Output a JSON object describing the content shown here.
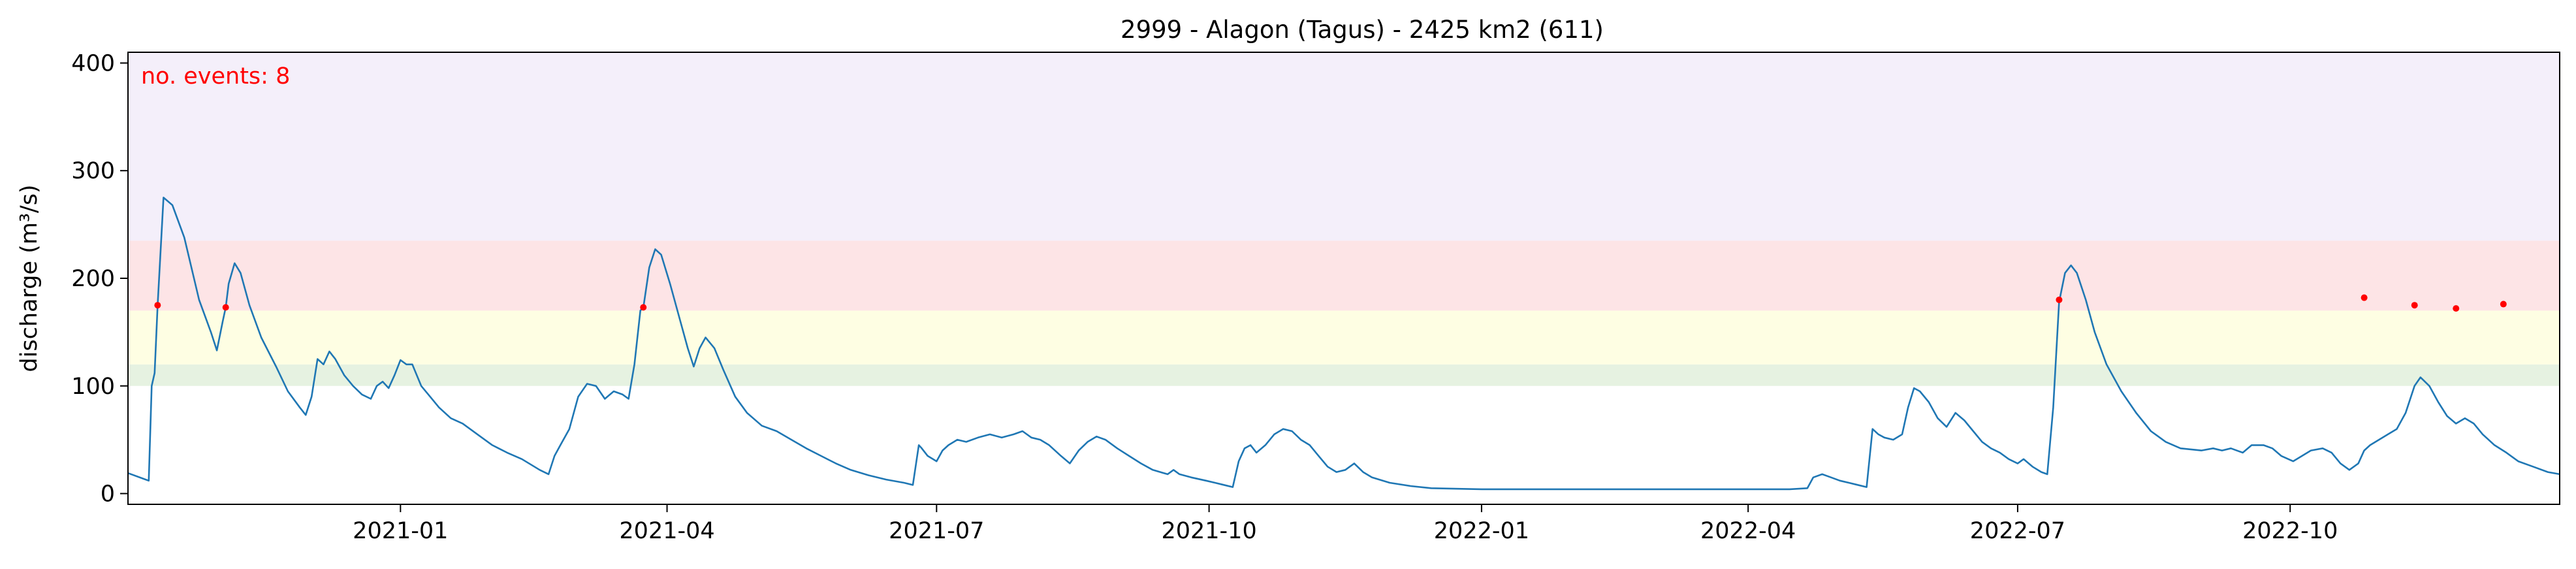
{
  "chart_data": {
    "type": "line",
    "title": "2999 - Alagon (Tagus) - 2425 km2 (611)",
    "xlabel": "",
    "ylabel": "discharge (m³/s)",
    "xlim": [
      "2020-10-01",
      "2022-12-31"
    ],
    "ylim": [
      -10,
      410
    ],
    "grid": false,
    "xticks": [
      "2021-01",
      "2021-04",
      "2021-07",
      "2021-10",
      "2022-01",
      "2022-04",
      "2022-07",
      "2022-10"
    ],
    "yticks": [
      0,
      100,
      200,
      300,
      400
    ],
    "annotation": {
      "text": "no. events: 8",
      "color": "#ff0000",
      "position": "top-left"
    },
    "threshold_bands": [
      {
        "from": 100,
        "to": 120,
        "color": "#e6f2e1"
      },
      {
        "from": 120,
        "to": 170,
        "color": "#fefee3"
      },
      {
        "from": 170,
        "to": 235,
        "color": "#fde4e6"
      },
      {
        "from": 235,
        "to": 410,
        "color": "#f4effa"
      }
    ],
    "series": [
      {
        "color": "#1f77b4",
        "points": [
          [
            "2020-10-01",
            19
          ],
          [
            "2020-10-06",
            14
          ],
          [
            "2020-10-08",
            12
          ],
          [
            "2020-10-09",
            100
          ],
          [
            "2020-10-10",
            112
          ],
          [
            "2020-10-11",
            175
          ],
          [
            "2020-10-13",
            275
          ],
          [
            "2020-10-16",
            268
          ],
          [
            "2020-10-20",
            238
          ],
          [
            "2020-10-25",
            180
          ],
          [
            "2020-10-29",
            150
          ],
          [
            "2020-10-31",
            133
          ],
          [
            "2020-11-02",
            160
          ],
          [
            "2020-11-03",
            173
          ],
          [
            "2020-11-04",
            195
          ],
          [
            "2020-11-06",
            214
          ],
          [
            "2020-11-08",
            205
          ],
          [
            "2020-11-11",
            175
          ],
          [
            "2020-11-15",
            145
          ],
          [
            "2020-11-20",
            118
          ],
          [
            "2020-11-24",
            95
          ],
          [
            "2020-11-28",
            80
          ],
          [
            "2020-11-30",
            73
          ],
          [
            "2020-12-02",
            90
          ],
          [
            "2020-12-04",
            125
          ],
          [
            "2020-12-06",
            120
          ],
          [
            "2020-12-08",
            132
          ],
          [
            "2020-12-10",
            125
          ],
          [
            "2020-12-13",
            110
          ],
          [
            "2020-12-16",
            100
          ],
          [
            "2020-12-19",
            92
          ],
          [
            "2020-12-22",
            88
          ],
          [
            "2020-12-24",
            100
          ],
          [
            "2020-12-26",
            104
          ],
          [
            "2020-12-28",
            98
          ],
          [
            "2020-12-30",
            110
          ],
          [
            "2021-01-01",
            124
          ],
          [
            "2021-01-03",
            120
          ],
          [
            "2021-01-05",
            120
          ],
          [
            "2021-01-08",
            100
          ],
          [
            "2021-01-11",
            90
          ],
          [
            "2021-01-14",
            80
          ],
          [
            "2021-01-18",
            70
          ],
          [
            "2021-01-22",
            65
          ],
          [
            "2021-01-27",
            55
          ],
          [
            "2021-02-01",
            45
          ],
          [
            "2021-02-06",
            38
          ],
          [
            "2021-02-11",
            32
          ],
          [
            "2021-02-17",
            22
          ],
          [
            "2021-02-20",
            18
          ],
          [
            "2021-02-22",
            35
          ],
          [
            "2021-02-24",
            45
          ],
          [
            "2021-02-27",
            60
          ],
          [
            "2021-03-02",
            90
          ],
          [
            "2021-03-05",
            102
          ],
          [
            "2021-03-08",
            100
          ],
          [
            "2021-03-11",
            88
          ],
          [
            "2021-03-14",
            95
          ],
          [
            "2021-03-17",
            92
          ],
          [
            "2021-03-19",
            88
          ],
          [
            "2021-03-21",
            120
          ],
          [
            "2021-03-23",
            170
          ],
          [
            "2021-03-24",
            173
          ],
          [
            "2021-03-26",
            210
          ],
          [
            "2021-03-28",
            227
          ],
          [
            "2021-03-30",
            222
          ],
          [
            "2021-04-02",
            195
          ],
          [
            "2021-04-05",
            165
          ],
          [
            "2021-04-08",
            135
          ],
          [
            "2021-04-10",
            118
          ],
          [
            "2021-04-12",
            135
          ],
          [
            "2021-04-14",
            145
          ],
          [
            "2021-04-17",
            135
          ],
          [
            "2021-04-20",
            115
          ],
          [
            "2021-04-24",
            90
          ],
          [
            "2021-04-28",
            75
          ],
          [
            "2021-05-03",
            63
          ],
          [
            "2021-05-08",
            58
          ],
          [
            "2021-05-13",
            50
          ],
          [
            "2021-05-18",
            42
          ],
          [
            "2021-05-23",
            35
          ],
          [
            "2021-05-28",
            28
          ],
          [
            "2021-06-02",
            22
          ],
          [
            "2021-06-08",
            17
          ],
          [
            "2021-06-14",
            13
          ],
          [
            "2021-06-20",
            10
          ],
          [
            "2021-06-23",
            8
          ],
          [
            "2021-06-25",
            45
          ],
          [
            "2021-06-26",
            42
          ],
          [
            "2021-06-28",
            35
          ],
          [
            "2021-07-01",
            30
          ],
          [
            "2021-07-03",
            40
          ],
          [
            "2021-07-05",
            45
          ],
          [
            "2021-07-08",
            50
          ],
          [
            "2021-07-11",
            48
          ],
          [
            "2021-07-15",
            52
          ],
          [
            "2021-07-19",
            55
          ],
          [
            "2021-07-23",
            52
          ],
          [
            "2021-07-27",
            55
          ],
          [
            "2021-07-30",
            58
          ],
          [
            "2021-08-02",
            52
          ],
          [
            "2021-08-05",
            50
          ],
          [
            "2021-08-08",
            45
          ],
          [
            "2021-08-12",
            35
          ],
          [
            "2021-08-15",
            28
          ],
          [
            "2021-08-18",
            40
          ],
          [
            "2021-08-21",
            48
          ],
          [
            "2021-08-24",
            53
          ],
          [
            "2021-08-27",
            50
          ],
          [
            "2021-08-31",
            42
          ],
          [
            "2021-09-04",
            35
          ],
          [
            "2021-09-08",
            28
          ],
          [
            "2021-09-12",
            22
          ],
          [
            "2021-09-17",
            18
          ],
          [
            "2021-09-19",
            22
          ],
          [
            "2021-09-21",
            18
          ],
          [
            "2021-09-25",
            15
          ],
          [
            "2021-09-30",
            12
          ],
          [
            "2021-10-03",
            10
          ],
          [
            "2021-10-06",
            8
          ],
          [
            "2021-10-09",
            6
          ],
          [
            "2021-10-11",
            30
          ],
          [
            "2021-10-13",
            42
          ],
          [
            "2021-10-15",
            45
          ],
          [
            "2021-10-17",
            38
          ],
          [
            "2021-10-20",
            45
          ],
          [
            "2021-10-23",
            55
          ],
          [
            "2021-10-26",
            60
          ],
          [
            "2021-10-29",
            58
          ],
          [
            "2021-11-01",
            50
          ],
          [
            "2021-11-04",
            45
          ],
          [
            "2021-11-07",
            35
          ],
          [
            "2021-11-10",
            25
          ],
          [
            "2021-11-13",
            20
          ],
          [
            "2021-11-16",
            22
          ],
          [
            "2021-11-19",
            28
          ],
          [
            "2021-11-22",
            20
          ],
          [
            "2021-11-25",
            15
          ],
          [
            "2021-12-01",
            10
          ],
          [
            "2021-12-08",
            7
          ],
          [
            "2021-12-15",
            5
          ],
          [
            "2022-01-01",
            4
          ],
          [
            "2022-02-01",
            4
          ],
          [
            "2022-03-01",
            4
          ],
          [
            "2022-04-01",
            4
          ],
          [
            "2022-04-15",
            4
          ],
          [
            "2022-04-21",
            5
          ],
          [
            "2022-04-23",
            15
          ],
          [
            "2022-04-26",
            18
          ],
          [
            "2022-04-29",
            15
          ],
          [
            "2022-05-02",
            12
          ],
          [
            "2022-05-05",
            10
          ],
          [
            "2022-05-08",
            8
          ],
          [
            "2022-05-11",
            6
          ],
          [
            "2022-05-13",
            60
          ],
          [
            "2022-05-15",
            55
          ],
          [
            "2022-05-17",
            52
          ],
          [
            "2022-05-20",
            50
          ],
          [
            "2022-05-23",
            55
          ],
          [
            "2022-05-25",
            80
          ],
          [
            "2022-05-27",
            98
          ],
          [
            "2022-05-29",
            95
          ],
          [
            "2022-06-01",
            85
          ],
          [
            "2022-06-04",
            70
          ],
          [
            "2022-06-07",
            62
          ],
          [
            "2022-06-10",
            75
          ],
          [
            "2022-06-13",
            68
          ],
          [
            "2022-06-16",
            58
          ],
          [
            "2022-06-19",
            48
          ],
          [
            "2022-06-22",
            42
          ],
          [
            "2022-06-25",
            38
          ],
          [
            "2022-06-28",
            32
          ],
          [
            "2022-07-01",
            28
          ],
          [
            "2022-07-03",
            32
          ],
          [
            "2022-07-06",
            25
          ],
          [
            "2022-07-09",
            20
          ],
          [
            "2022-07-11",
            18
          ],
          [
            "2022-07-13",
            80
          ],
          [
            "2022-07-15",
            178
          ],
          [
            "2022-07-17",
            205
          ],
          [
            "2022-07-19",
            212
          ],
          [
            "2022-07-21",
            205
          ],
          [
            "2022-07-24",
            180
          ],
          [
            "2022-07-27",
            150
          ],
          [
            "2022-07-31",
            120
          ],
          [
            "2022-08-05",
            95
          ],
          [
            "2022-08-10",
            75
          ],
          [
            "2022-08-15",
            58
          ],
          [
            "2022-08-20",
            48
          ],
          [
            "2022-08-25",
            42
          ],
          [
            "2022-09-01",
            40
          ],
          [
            "2022-09-05",
            42
          ],
          [
            "2022-09-08",
            40
          ],
          [
            "2022-09-11",
            42
          ],
          [
            "2022-09-15",
            38
          ],
          [
            "2022-09-18",
            45
          ],
          [
            "2022-09-22",
            45
          ],
          [
            "2022-09-25",
            42
          ],
          [
            "2022-09-28",
            35
          ],
          [
            "2022-10-02",
            30
          ],
          [
            "2022-10-05",
            35
          ],
          [
            "2022-10-08",
            40
          ],
          [
            "2022-10-12",
            42
          ],
          [
            "2022-10-15",
            38
          ],
          [
            "2022-10-18",
            28
          ],
          [
            "2022-10-21",
            22
          ],
          [
            "2022-10-24",
            28
          ],
          [
            "2022-10-26",
            40
          ],
          [
            "2022-10-28",
            45
          ],
          [
            "2022-10-31",
            50
          ],
          [
            "2022-11-03",
            55
          ],
          [
            "2022-11-06",
            60
          ],
          [
            "2022-11-09",
            75
          ],
          [
            "2022-11-12",
            100
          ],
          [
            "2022-11-14",
            108
          ],
          [
            "2022-11-17",
            100
          ],
          [
            "2022-11-20",
            85
          ],
          [
            "2022-11-23",
            72
          ],
          [
            "2022-11-26",
            65
          ],
          [
            "2022-11-29",
            70
          ],
          [
            "2022-12-02",
            65
          ],
          [
            "2022-12-05",
            55
          ],
          [
            "2022-12-09",
            45
          ],
          [
            "2022-12-13",
            38
          ],
          [
            "2022-12-17",
            30
          ],
          [
            "2022-12-22",
            25
          ],
          [
            "2022-12-27",
            20
          ],
          [
            "2022-12-31",
            18
          ]
        ]
      }
    ],
    "event_markers": {
      "color": "#ff0000",
      "points": [
        [
          "2020-10-11",
          175
        ],
        [
          "2020-11-03",
          173
        ],
        [
          "2021-03-24",
          173
        ],
        [
          "2022-07-15",
          180
        ],
        [
          "2022-10-26",
          182
        ],
        [
          "2022-11-12",
          175
        ],
        [
          "2022-11-26",
          172
        ],
        [
          "2022-12-12",
          176
        ]
      ]
    }
  }
}
